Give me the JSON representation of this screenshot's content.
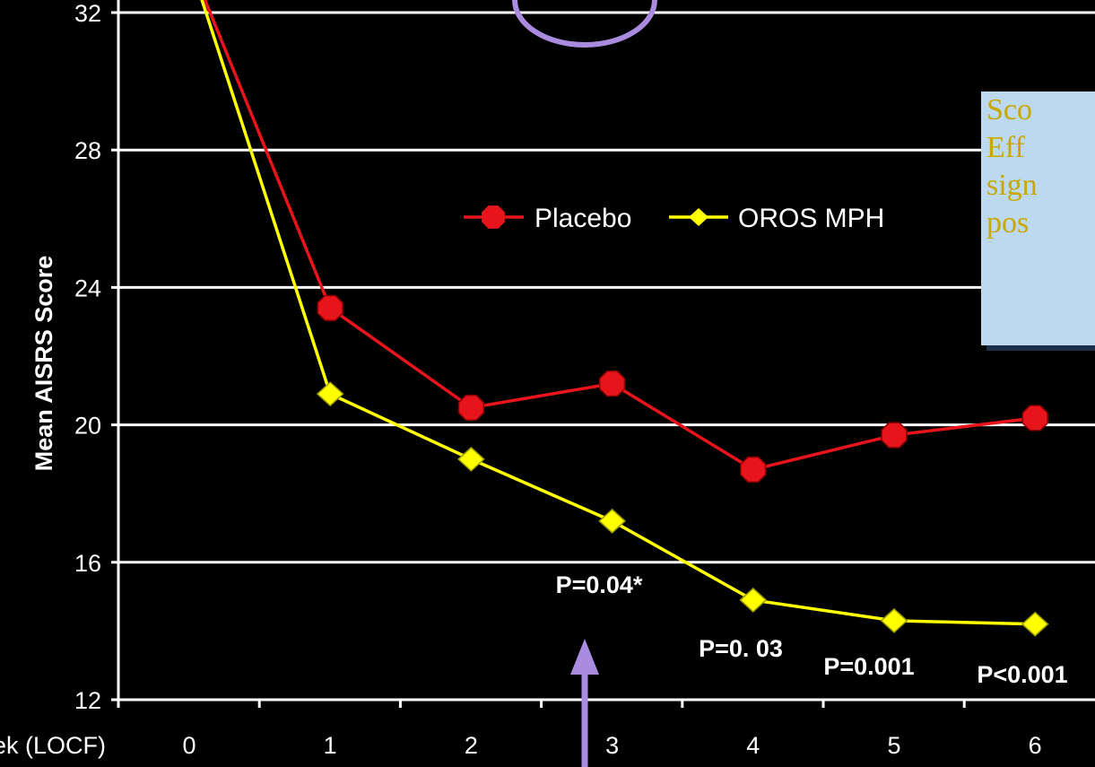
{
  "chart_data": {
    "type": "line",
    "ylabel": "Mean AISRS Score",
    "xlabel": "ek (LOCF)",
    "x": [
      0,
      1,
      2,
      3,
      4,
      5,
      6
    ],
    "x_tick_labels": [
      "0",
      "1",
      "2",
      "3",
      "4",
      "5",
      "6"
    ],
    "ylim": [
      12,
      32
    ],
    "y_ticks": [
      12,
      16,
      20,
      24,
      28,
      32
    ],
    "grid": true,
    "legend_placement": "top-center",
    "series": [
      {
        "name": "Placebo",
        "color": "#e8141b",
        "marker": "octagon",
        "values": [
          33.5,
          23.4,
          20.5,
          21.2,
          18.7,
          19.7,
          20.2
        ]
      },
      {
        "name": "OROS MPH",
        "color": "#ffff00",
        "marker": "diamond",
        "values": [
          33.5,
          20.9,
          19.0,
          17.2,
          14.9,
          14.3,
          14.2
        ]
      }
    ],
    "annotations": [
      {
        "text": "P=0.04*",
        "x": 3
      },
      {
        "text": "P=0. 03",
        "x": 4
      },
      {
        "text": "P=0.001",
        "x": 5
      },
      {
        "text": "P<0.001",
        "x": 6
      }
    ]
  },
  "callout": {
    "lines": [
      "Sco",
      "Eff",
      "sign",
      "pos"
    ]
  },
  "highlight_color": "#a98be0"
}
